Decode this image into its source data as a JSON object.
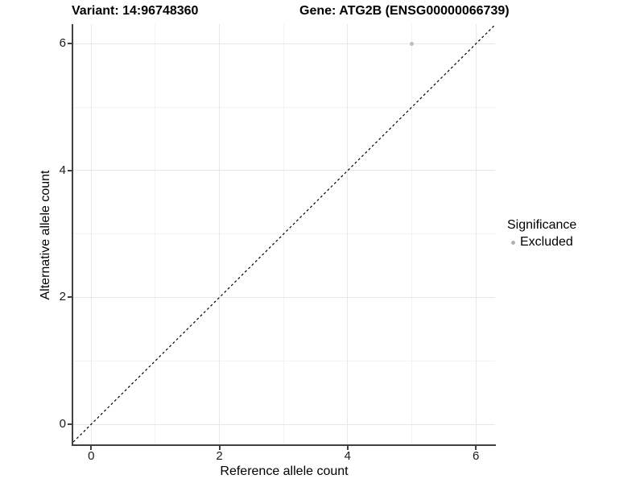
{
  "chart_data": {
    "type": "scatter",
    "title_left": "Variant: 14:96748360",
    "title_right": "Gene: ATG2B (ENSG00000066739)",
    "xlabel": "Reference allele count",
    "ylabel": "Alternative allele count",
    "xlim": [
      -0.28,
      6.3
    ],
    "ylim": [
      -0.33,
      6.31
    ],
    "x_ticks": [
      0,
      2,
      4,
      6
    ],
    "x_minor_ticks": [
      1,
      3,
      5
    ],
    "y_ticks": [
      0,
      2,
      4,
      6
    ],
    "y_minor_ticks": [
      1,
      3,
      5
    ],
    "grid": "major+minor",
    "identity_line": {
      "slope": 1,
      "intercept": 0,
      "style": "dashed",
      "color": "#000000"
    },
    "series": [
      {
        "name": "Excluded",
        "color": "#bdbdbd",
        "points": [
          {
            "x": 5,
            "y": 6
          }
        ]
      }
    ],
    "legend": {
      "title": "Significance",
      "position": "right",
      "items": [
        {
          "label": "Excluded",
          "marker": "circle",
          "color": "#b3b3b3"
        }
      ]
    }
  },
  "style": {
    "major_grid_color": "#e8e8e8",
    "minor_grid_color": "#f2f2f2",
    "axis_line_color": "#404040",
    "text_color": "#000000",
    "background_color": "#ffffff"
  }
}
